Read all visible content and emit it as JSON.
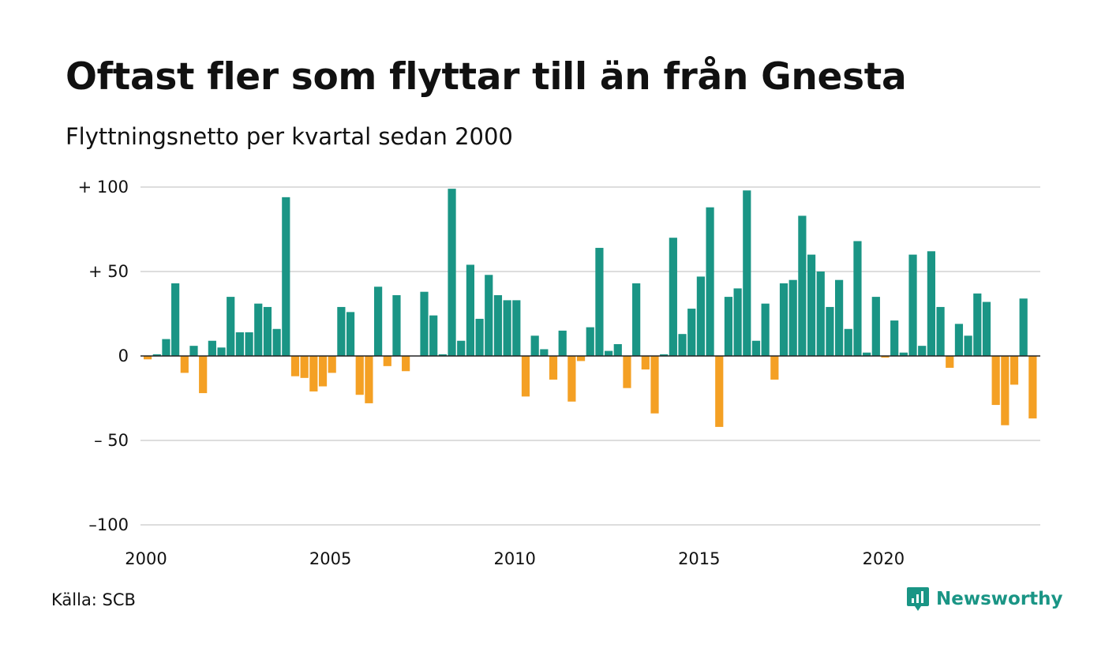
{
  "title": "Oftast fler som flyttar till än från Gnesta",
  "subtitle": "Flyttningsnetto per kvartal sedan 2000",
  "source": "Källa: SCB",
  "brand": "Newsworthy",
  "colors": {
    "positive": "#1a9585",
    "negative": "#f4a024",
    "grid": "#dddddd",
    "text": "#111111"
  },
  "chart_data": {
    "type": "bar",
    "title": "Oftast fler som flyttar till än från Gnesta",
    "subtitle": "Flyttningsnetto per kvartal sedan 2000",
    "x_start": "2000 Q1",
    "x_tick_labels": [
      "2000",
      "2005",
      "2010",
      "2015",
      "2020"
    ],
    "y_tick_labels": [
      "+ 100",
      "+  50",
      "0",
      "– 50",
      "–100"
    ],
    "y_ticks": [
      100,
      50,
      0,
      -50,
      -100
    ],
    "ylim": [
      -100,
      100
    ],
    "grid": true,
    "values": [
      -2,
      1,
      10,
      43,
      -10,
      6,
      -22,
      9,
      5,
      35,
      14,
      14,
      31,
      29,
      16,
      94,
      -12,
      -13,
      -21,
      -18,
      -10,
      29,
      26,
      -23,
      -28,
      41,
      -6,
      36,
      -9,
      0,
      38,
      24,
      1,
      99,
      9,
      54,
      22,
      48,
      36,
      33,
      33,
      -24,
      12,
      4,
      -14,
      15,
      -27,
      -3,
      17,
      64,
      3,
      7,
      -19,
      43,
      -8,
      -34,
      1,
      70,
      13,
      28,
      47,
      88,
      -42,
      35,
      40,
      98,
      9,
      31,
      -14,
      43,
      45,
      83,
      60,
      50,
      29,
      45,
      16,
      68,
      2,
      35,
      -1,
      21,
      2,
      60,
      6,
      62,
      29,
      -7,
      19,
      12,
      37,
      32,
      -29,
      -41,
      -17,
      34,
      -37
    ]
  }
}
